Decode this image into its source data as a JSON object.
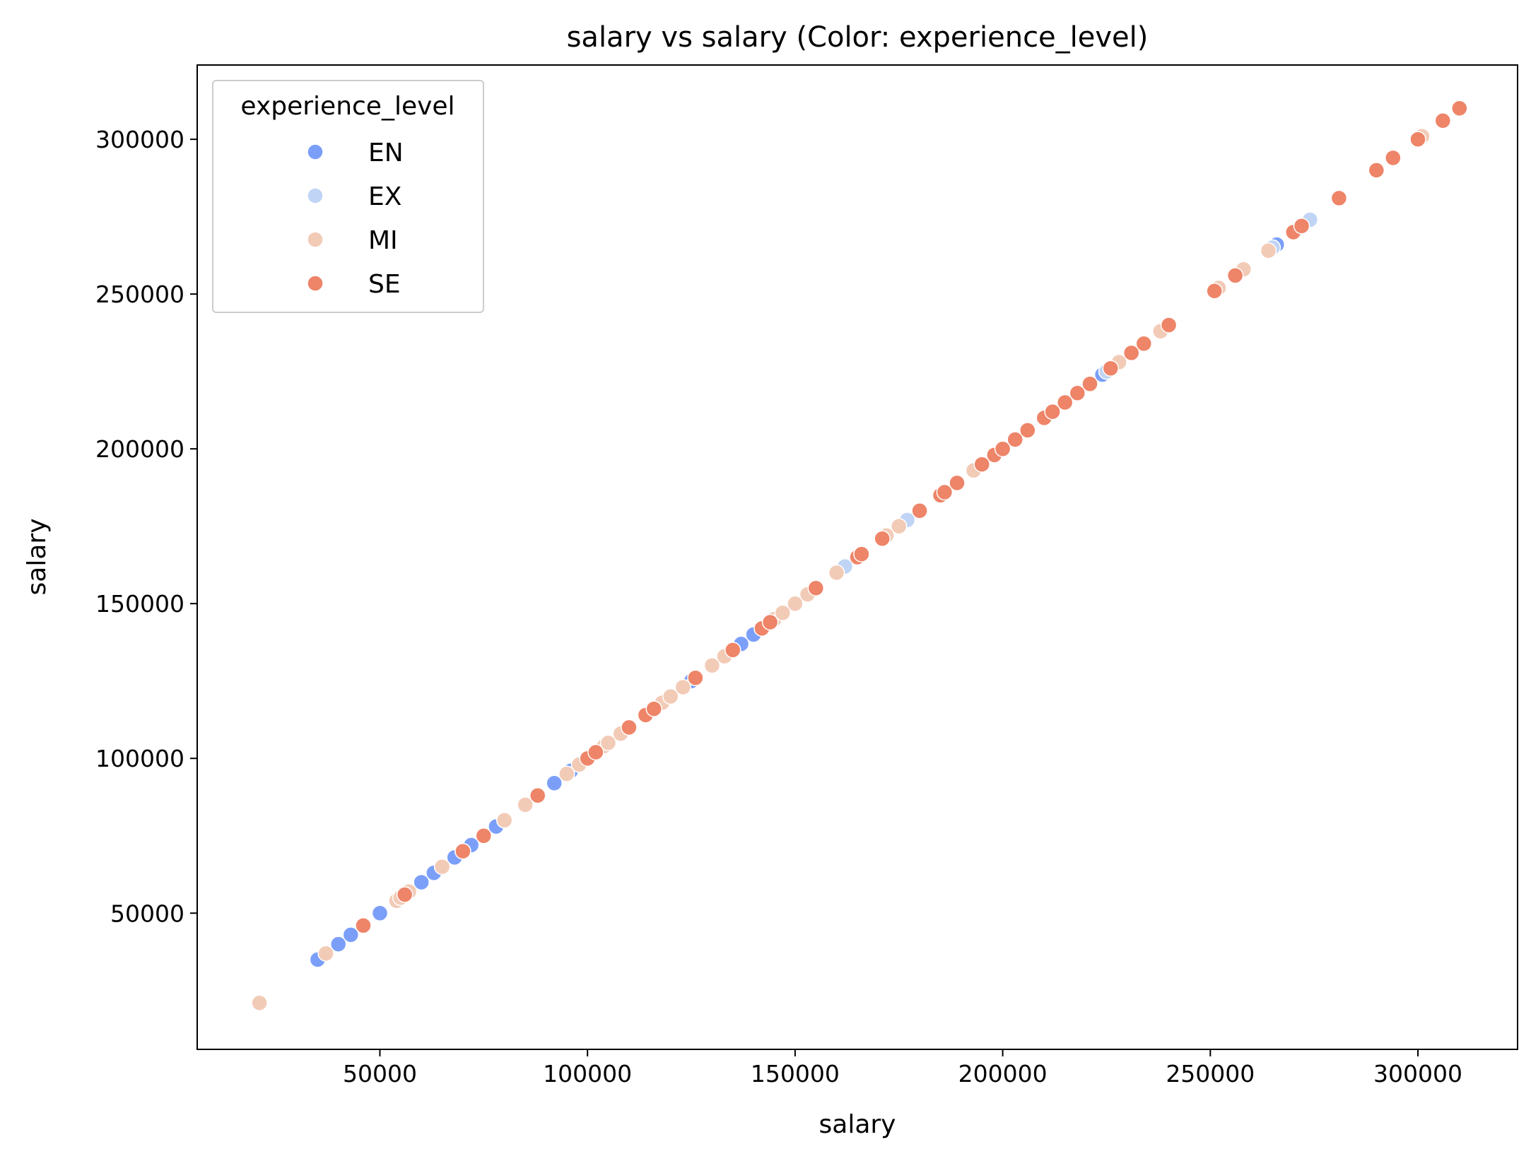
{
  "chart_data": {
    "type": "scatter",
    "title": "salary vs salary (Color: experience_level)",
    "xlabel": "salary",
    "ylabel": "salary",
    "xlim": [
      6000,
      324000
    ],
    "ylim": [
      6000,
      324000
    ],
    "xticks": [
      50000,
      100000,
      150000,
      200000,
      250000,
      300000
    ],
    "yticks": [
      50000,
      100000,
      150000,
      200000,
      250000,
      300000
    ],
    "grid": false,
    "legend": {
      "title": "experience_level",
      "position": "top-left"
    },
    "series": [
      {
        "name": "EN",
        "color": "#7b9ff9",
        "x": [
          35000,
          40000,
          43000,
          46000,
          50000,
          60000,
          63000,
          68000,
          72000,
          75000,
          78000,
          92000,
          96000,
          125000,
          137000,
          140000,
          160000,
          224000,
          266000
        ],
        "y": [
          35000,
          40000,
          43000,
          46000,
          50000,
          60000,
          63000,
          68000,
          72000,
          75000,
          78000,
          92000,
          96000,
          125000,
          137000,
          140000,
          160000,
          224000,
          266000
        ]
      },
      {
        "name": "EX",
        "color": "#c0d4f5",
        "x": [
          88000,
          130000,
          162000,
          177000,
          225000,
          265000,
          274000
        ],
        "y": [
          88000,
          130000,
          162000,
          177000,
          225000,
          265000,
          274000
        ]
      },
      {
        "name": "MI",
        "color": "#f2cbb7",
        "x": [
          21000,
          37000,
          54000,
          55000,
          57000,
          65000,
          70000,
          80000,
          85000,
          95000,
          98000,
          104000,
          105000,
          108000,
          118000,
          120000,
          123000,
          130000,
          133000,
          145000,
          147000,
          150000,
          153000,
          160000,
          172000,
          175000,
          180000,
          193000,
          228000,
          238000,
          252000,
          258000,
          264000,
          301000
        ],
        "y": [
          21000,
          37000,
          54000,
          55000,
          57000,
          65000,
          70000,
          80000,
          85000,
          95000,
          98000,
          104000,
          105000,
          108000,
          118000,
          120000,
          123000,
          130000,
          133000,
          145000,
          147000,
          150000,
          153000,
          160000,
          172000,
          175000,
          180000,
          193000,
          228000,
          238000,
          252000,
          258000,
          264000,
          301000
        ]
      },
      {
        "name": "SE",
        "color": "#ee8468",
        "x": [
          46000,
          56000,
          70000,
          75000,
          88000,
          100000,
          102000,
          110000,
          114000,
          116000,
          126000,
          135000,
          142000,
          144000,
          155000,
          165000,
          166000,
          171000,
          180000,
          185000,
          186000,
          189000,
          195000,
          198000,
          200000,
          203000,
          206000,
          210000,
          212000,
          215000,
          218000,
          221000,
          226000,
          231000,
          234000,
          240000,
          251000,
          256000,
          270000,
          272000,
          281000,
          290000,
          294000,
          300000,
          306000,
          310000
        ],
        "y": [
          46000,
          56000,
          70000,
          75000,
          88000,
          100000,
          102000,
          110000,
          114000,
          116000,
          126000,
          135000,
          142000,
          144000,
          155000,
          165000,
          166000,
          171000,
          180000,
          185000,
          186000,
          189000,
          195000,
          198000,
          200000,
          203000,
          206000,
          210000,
          212000,
          215000,
          218000,
          221000,
          226000,
          231000,
          234000,
          240000,
          251000,
          256000,
          270000,
          272000,
          281000,
          290000,
          294000,
          300000,
          306000,
          310000
        ]
      }
    ]
  }
}
